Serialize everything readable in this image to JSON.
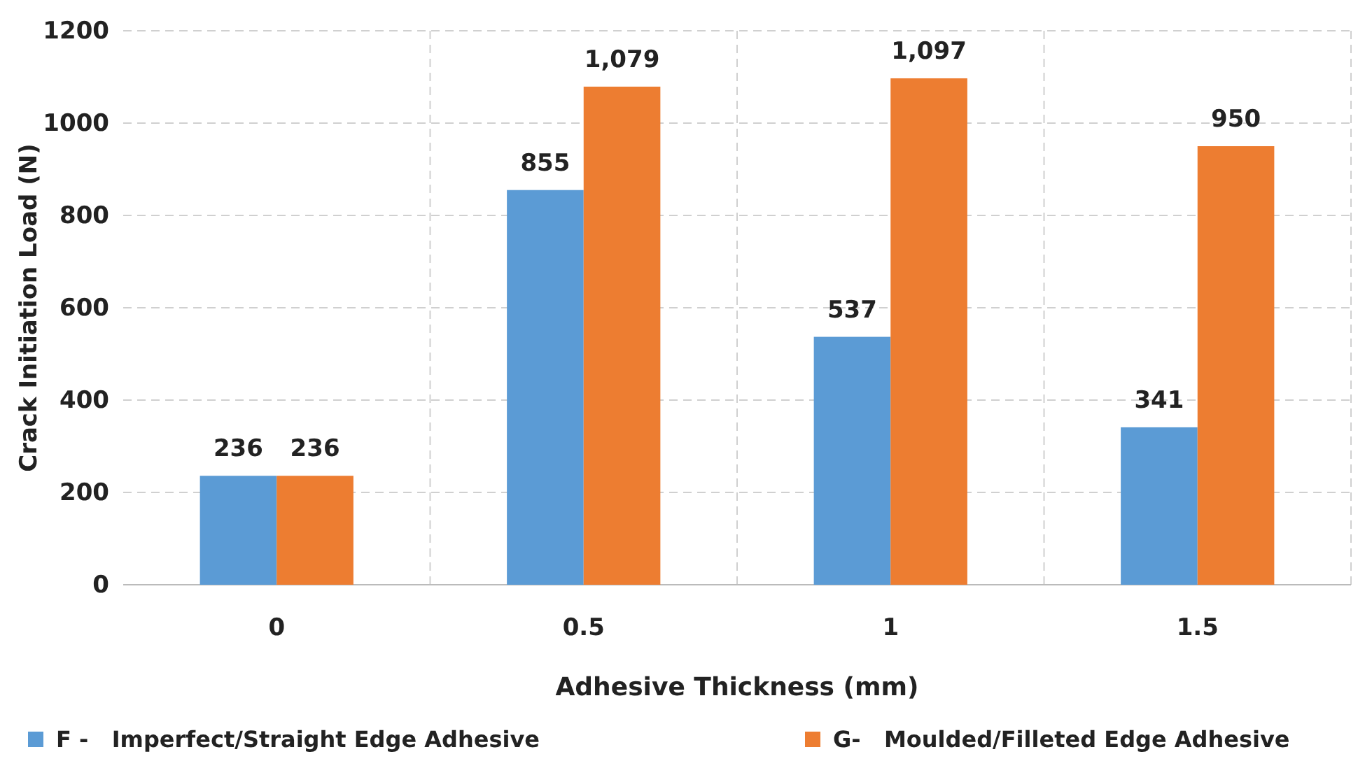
{
  "chart_data": {
    "type": "bar",
    "xlabel": "Adhesive Thickness (mm)",
    "ylabel": "Crack Initiation Load (N)",
    "categories": [
      "0",
      "0.5",
      "1",
      "1.5"
    ],
    "series": [
      {
        "name": "F -   Imperfect/Straight Edge Adhesive",
        "color": "#5b9bd5",
        "values": [
          236,
          855,
          537,
          341
        ],
        "value_labels": [
          "236",
          "855",
          "537",
          "341"
        ]
      },
      {
        "name": "G-   Moulded/Filleted Edge Adhesive",
        "color": "#ed7d31",
        "values": [
          236,
          1079,
          1097,
          950
        ],
        "value_labels": [
          "236",
          "1,079",
          "1,097",
          "950"
        ]
      }
    ],
    "ylim": [
      0,
      1200
    ],
    "yticks": [
      0,
      200,
      400,
      600,
      800,
      1000,
      1200
    ],
    "grid": true,
    "legend": "bottom"
  }
}
